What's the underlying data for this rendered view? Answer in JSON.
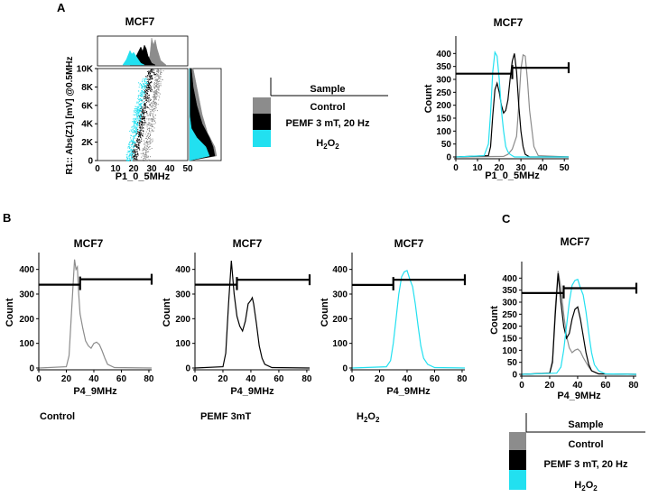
{
  "panel_labels": {
    "a": "A",
    "b": "B",
    "c": "C"
  },
  "colors": {
    "control": "#8c8c8c",
    "pemf": "#000000",
    "h2o2": "#22e0f0",
    "gate": "#000000"
  },
  "legend": {
    "header": "Sample",
    "items": [
      {
        "label": "Control",
        "color": "#8c8c8c"
      },
      {
        "label": "PEMF 3 mT, 20 Hz",
        "color": "#000000"
      },
      {
        "label": "H2O2",
        "label_main": "H",
        "label_sub": "2",
        "label_main2": "O",
        "label_sub2": "2",
        "color": "#22e0f0"
      }
    ]
  },
  "captions": {
    "control": "Control",
    "pemf": "PEMF 3mT",
    "h2o2_main": "H",
    "h2o2_sub": "2",
    "h2o2_main2": "O",
    "h2o2_sub2": "2"
  },
  "chart_data": [
    {
      "id": "A-scatter",
      "type": "scatter",
      "title": "MCF7",
      "xlabel": "P1_0_5MHz",
      "ylabel": "R1:: Abs(Z1) [mV] @0.5MHz",
      "xlim": [
        0,
        50
      ],
      "ylim": [
        0,
        10000
      ],
      "x_ticks": [
        "0",
        "10",
        "20",
        "30",
        "40",
        "50"
      ],
      "y_ticks": [
        "0",
        "2K",
        "4K",
        "6K",
        "8K",
        "10K"
      ],
      "series": [
        {
          "name": "Control",
          "x_center_range": [
            26,
            34
          ],
          "y_range": [
            0,
            10000
          ]
        },
        {
          "name": "PEMF 3 mT, 20 Hz",
          "x_center_range": [
            20,
            30
          ],
          "y_range": [
            0,
            10000
          ]
        },
        {
          "name": "H2O2",
          "x_center_range": [
            17,
            27
          ],
          "y_range": [
            0,
            9000
          ]
        }
      ]
    },
    {
      "id": "A-histogram",
      "type": "line",
      "title": "MCF7",
      "xlabel": "P1_0_5MHz",
      "ylabel": "Count",
      "xlim": [
        0,
        52
      ],
      "ylim": [
        0,
        450
      ],
      "x_ticks": [
        "0",
        "10",
        "20",
        "30",
        "40",
        "50"
      ],
      "y_ticks": [
        "0",
        "50",
        "100",
        "150",
        "200",
        "250",
        "300",
        "350",
        "400"
      ],
      "gate": {
        "x_start": 0,
        "x_split": 26,
        "x_end": 52,
        "y_left": 322,
        "y_right": 345
      },
      "series": [
        {
          "name": "Control",
          "x": [
            0,
            22,
            24,
            26,
            28,
            29,
            30,
            31,
            32,
            33,
            34,
            36,
            38,
            52
          ],
          "y": [
            0,
            2,
            10,
            30,
            80,
            200,
            340,
            395,
            390,
            300,
            180,
            40,
            5,
            0
          ]
        },
        {
          "name": "PEMF 3 mT, 20 Hz",
          "x": [
            0,
            15,
            16,
            17,
            18,
            19,
            20,
            21,
            22,
            23,
            24,
            25,
            26,
            27,
            28,
            29,
            30,
            31,
            32,
            34,
            52
          ],
          "y": [
            0,
            5,
            40,
            160,
            260,
            285,
            250,
            200,
            170,
            180,
            220,
            300,
            370,
            400,
            330,
            200,
            100,
            40,
            10,
            0,
            0
          ]
        },
        {
          "name": "H2O2",
          "x": [
            0,
            13,
            15,
            16,
            17,
            18,
            19,
            20,
            21,
            22,
            23,
            24,
            25,
            26,
            27,
            52
          ],
          "y": [
            0,
            5,
            50,
            170,
            330,
            405,
            390,
            300,
            180,
            100,
            40,
            20,
            10,
            5,
            0,
            0
          ]
        }
      ]
    },
    {
      "id": "B-control",
      "type": "line",
      "title": "MCF7",
      "xlabel": "P4_9MHz",
      "ylabel": "Count",
      "xlim": [
        0,
        82
      ],
      "ylim": [
        0,
        450
      ],
      "x_ticks": [
        "0",
        "20",
        "40",
        "60",
        "80"
      ],
      "y_ticks": [
        "0",
        "100",
        "200",
        "300",
        "400"
      ],
      "gate": {
        "x_start": 0,
        "x_split": 30,
        "x_end": 82,
        "y_left": 338,
        "y_right": 360
      },
      "series": [
        {
          "name": "Control",
          "x": [
            0,
            20,
            22,
            24,
            26,
            27,
            28,
            29,
            30,
            32,
            34,
            36,
            38,
            40,
            42,
            44,
            46,
            48,
            50,
            55,
            82
          ],
          "y": [
            0,
            5,
            50,
            250,
            440,
            400,
            410,
            300,
            220,
            160,
            110,
            90,
            80,
            100,
            105,
            95,
            70,
            40,
            15,
            2,
            0
          ]
        }
      ]
    },
    {
      "id": "B-pemf",
      "type": "line",
      "title": "MCF7",
      "xlabel": "P4_9MHz",
      "ylabel": "Count",
      "xlim": [
        0,
        82
      ],
      "ylim": [
        0,
        450
      ],
      "x_ticks": [
        "0",
        "20",
        "40",
        "60",
        "80"
      ],
      "y_ticks": [
        "0",
        "100",
        "200",
        "300",
        "400"
      ],
      "gate": {
        "x_start": 0,
        "x_split": 30,
        "x_end": 82,
        "y_left": 338,
        "y_right": 358
      },
      "series": [
        {
          "name": "PEMF 3mT",
          "x": [
            0,
            20,
            22,
            24,
            26,
            28,
            30,
            32,
            34,
            36,
            38,
            40,
            41,
            42,
            44,
            46,
            48,
            50,
            55,
            82
          ],
          "y": [
            0,
            5,
            60,
            260,
            435,
            300,
            210,
            170,
            150,
            190,
            260,
            275,
            285,
            260,
            180,
            90,
            40,
            15,
            2,
            0
          ]
        }
      ]
    },
    {
      "id": "B-h2o2",
      "type": "line",
      "title": "MCF7",
      "xlabel": "P4_9MHz",
      "ylabel": "Count",
      "xlim": [
        0,
        82
      ],
      "ylim": [
        0,
        450
      ],
      "x_ticks": [
        "0",
        "20",
        "40",
        "60",
        "80"
      ],
      "y_ticks": [
        "0",
        "100",
        "200",
        "300",
        "400"
      ],
      "gate": {
        "x_start": 0,
        "x_split": 30,
        "x_end": 82,
        "y_left": 337,
        "y_right": 358
      },
      "series": [
        {
          "name": "H2O2",
          "x": [
            0,
            25,
            28,
            30,
            32,
            34,
            36,
            38,
            40,
            42,
            44,
            46,
            48,
            50,
            52,
            55,
            60,
            82
          ],
          "y": [
            0,
            5,
            30,
            100,
            200,
            300,
            370,
            390,
            395,
            360,
            330,
            260,
            170,
            90,
            40,
            15,
            2,
            0
          ]
        }
      ]
    },
    {
      "id": "C-overlay",
      "type": "line",
      "title": "MCF7",
      "xlabel": "P4_9MHz",
      "ylabel": "Count",
      "xlim": [
        0,
        82
      ],
      "ylim": [
        0,
        450
      ],
      "x_ticks": [
        "0",
        "20",
        "40",
        "60",
        "80"
      ],
      "y_ticks": [
        "0",
        "50",
        "100",
        "150",
        "200",
        "250",
        "300",
        "350",
        "400"
      ],
      "gate": {
        "x_start": 0,
        "x_split": 30,
        "x_end": 82,
        "y_left": 338,
        "y_right": 358
      },
      "series": [
        {
          "name": "Control",
          "x": [
            0,
            20,
            22,
            24,
            26,
            28,
            30,
            32,
            34,
            36,
            38,
            40,
            42,
            44,
            46,
            48,
            50,
            55,
            82
          ],
          "y": [
            0,
            5,
            60,
            280,
            430,
            360,
            250,
            160,
            110,
            90,
            100,
            105,
            95,
            70,
            50,
            30,
            15,
            2,
            0
          ]
        },
        {
          "name": "PEMF 3 mT, 20 Hz",
          "x": [
            0,
            20,
            22,
            24,
            26,
            28,
            30,
            32,
            34,
            36,
            38,
            40,
            42,
            44,
            46,
            48,
            50,
            55,
            82
          ],
          "y": [
            0,
            5,
            50,
            250,
            420,
            300,
            200,
            150,
            170,
            230,
            270,
            280,
            230,
            160,
            90,
            40,
            15,
            2,
            0
          ]
        },
        {
          "name": "H2O2",
          "x": [
            0,
            25,
            28,
            30,
            32,
            34,
            36,
            38,
            40,
            42,
            44,
            46,
            48,
            50,
            52,
            55,
            60,
            82
          ],
          "y": [
            0,
            5,
            30,
            100,
            200,
            300,
            370,
            390,
            395,
            360,
            330,
            260,
            170,
            90,
            40,
            15,
            2,
            0
          ]
        }
      ]
    }
  ]
}
